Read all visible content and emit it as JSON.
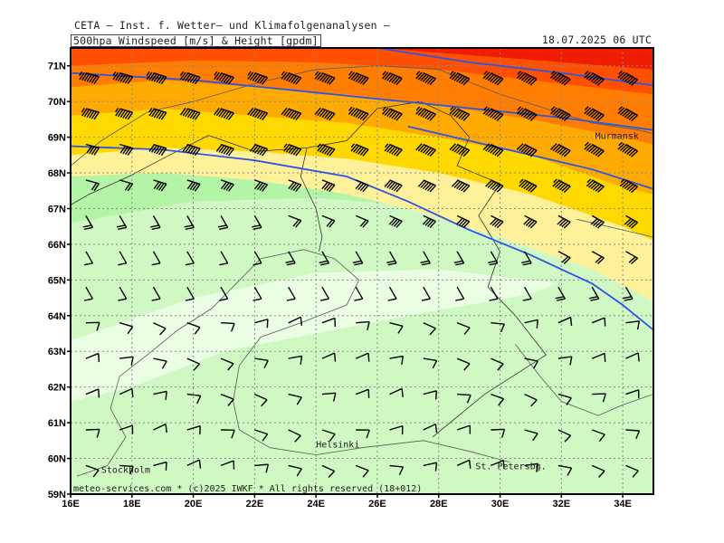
{
  "header": {
    "title": "CETA – Inst. f. Wetter– und Klimafolgenanalysen –",
    "variable": "500hpa_Windspeed_[m/s]_&_Height_[gpdm]",
    "valid_time": "18.07.2025 06 UTC"
  },
  "footer": {
    "credit": "meteo-services.com * (c)2025 IWKF * All rights reserved (18+012)"
  },
  "cities": [
    {
      "name": "Murmansk",
      "lon": 33.1,
      "lat": 68.95
    },
    {
      "name": "Helsinki",
      "lon": 24.0,
      "lat": 60.3
    },
    {
      "name": "Stockholm",
      "lon": 17.0,
      "lat": 59.6
    },
    {
      "name": "St. Petersbg.",
      "lon": 29.2,
      "lat": 59.7
    }
  ],
  "axes": {
    "lon_min": 16,
    "lon_max": 35,
    "lat_min": 59,
    "lat_max": 71.5,
    "lon_ticks": [
      {
        "v": 16,
        "label": "16E"
      },
      {
        "v": 18,
        "label": "18E"
      },
      {
        "v": 20,
        "label": "20E"
      },
      {
        "v": 22,
        "label": "22E"
      },
      {
        "v": 24,
        "label": "24E"
      },
      {
        "v": 26,
        "label": "26E"
      },
      {
        "v": 28,
        "label": "28E"
      },
      {
        "v": 30,
        "label": "30E"
      },
      {
        "v": 32,
        "label": "32E"
      },
      {
        "v": 34,
        "label": "34E"
      }
    ],
    "lat_ticks": [
      {
        "v": 59,
        "label": "59N"
      },
      {
        "v": 60,
        "label": "60N"
      },
      {
        "v": 61,
        "label": "61N"
      },
      {
        "v": 62,
        "label": "62N"
      },
      {
        "v": 63,
        "label": "63N"
      },
      {
        "v": 64,
        "label": "64N"
      },
      {
        "v": 65,
        "label": "65N"
      },
      {
        "v": 66,
        "label": "66N"
      },
      {
        "v": 67,
        "label": "67N"
      },
      {
        "v": 68,
        "label": "68N"
      },
      {
        "v": 69,
        "label": "69N"
      },
      {
        "v": 70,
        "label": "70N"
      },
      {
        "v": 71,
        "label": "71N"
      }
    ]
  },
  "colors": {
    "frame": "#000000",
    "grid": "#8a8a8a",
    "contour": "#2d55e6",
    "coast": "#5a5a5a",
    "barb": "#000000"
  },
  "speed_bands": [
    {
      "color": "#eafee3",
      "points": [
        [
          16,
          59
        ],
        [
          35,
          59
        ],
        [
          35,
          71.5
        ],
        [
          16,
          71.5
        ]
      ]
    },
    {
      "color": "#cff8c3",
      "points": [
        [
          16,
          59
        ],
        [
          35,
          59
        ],
        [
          35,
          66.0
        ],
        [
          31,
          64.6
        ],
        [
          27,
          64.0
        ],
        [
          24,
          63.5
        ],
        [
          21,
          63.0
        ],
        [
          18,
          62.0
        ],
        [
          16,
          61.6
        ]
      ]
    },
    {
      "color": "#cff8c3",
      "points": [
        [
          16,
          63.3
        ],
        [
          20,
          64.5
        ],
        [
          24,
          65.2
        ],
        [
          28,
          65.3
        ],
        [
          32,
          64.9
        ],
        [
          35,
          64.6
        ],
        [
          35,
          71.5
        ],
        [
          16,
          71.5
        ]
      ]
    },
    {
      "color": "#b4f4a6",
      "points": [
        [
          16,
          66.6
        ],
        [
          20,
          67.2
        ],
        [
          24,
          67.3
        ],
        [
          27,
          67.1
        ],
        [
          30,
          66.5
        ],
        [
          33,
          65.6
        ],
        [
          35,
          64.8
        ],
        [
          35,
          71.5
        ],
        [
          16,
          71.5
        ]
      ]
    },
    {
      "color": "#fff09a",
      "points": [
        [
          16,
          67.9
        ],
        [
          19,
          68.0
        ],
        [
          22,
          67.8
        ],
        [
          25,
          67.4
        ],
        [
          27,
          67.0
        ],
        [
          30,
          66.2
        ],
        [
          33,
          65.3
        ],
        [
          35,
          64.4
        ],
        [
          35,
          71.5
        ],
        [
          16,
          71.5
        ]
      ]
    },
    {
      "color": "#ffd800",
      "points": [
        [
          16,
          68.5
        ],
        [
          19,
          68.7
        ],
        [
          22,
          68.6
        ],
        [
          25,
          68.4
        ],
        [
          28,
          68.0
        ],
        [
          31,
          67.4
        ],
        [
          34,
          66.5
        ],
        [
          35,
          66.1
        ],
        [
          35,
          71.5
        ],
        [
          16,
          71.5
        ]
      ]
    },
    {
      "color": "#ffaa00",
      "points": [
        [
          16,
          69.6
        ],
        [
          19,
          69.8
        ],
        [
          22,
          69.6
        ],
        [
          25,
          69.4
        ],
        [
          28,
          69.0
        ],
        [
          31,
          68.5
        ],
        [
          34,
          67.6
        ],
        [
          35,
          67.4
        ],
        [
          35,
          71.5
        ],
        [
          16,
          71.5
        ]
      ]
    },
    {
      "color": "#ff7d00",
      "points": [
        [
          16,
          70.4
        ],
        [
          19,
          70.6
        ],
        [
          22,
          70.4
        ],
        [
          25,
          70.2
        ],
        [
          28,
          69.9
        ],
        [
          31,
          69.5
        ],
        [
          34,
          69.0
        ],
        [
          35,
          68.8
        ],
        [
          35,
          71.5
        ],
        [
          16,
          71.5
        ]
      ]
    },
    {
      "color": "#ff4f00",
      "points": [
        [
          16,
          71.0
        ],
        [
          20,
          71.15
        ],
        [
          24,
          71.1
        ],
        [
          28,
          70.9
        ],
        [
          31,
          70.6
        ],
        [
          35,
          70.2
        ],
        [
          35,
          71.5
        ],
        [
          16,
          71.5
        ]
      ]
    },
    {
      "color": "#f01d00",
      "points": [
        [
          26,
          71.5
        ],
        [
          29,
          71.3
        ],
        [
          32,
          71.1
        ],
        [
          35,
          70.9
        ],
        [
          35,
          71.5
        ]
      ]
    }
  ],
  "height_contours": [
    {
      "points": [
        [
          16,
          70.8
        ],
        [
          20,
          70.6
        ],
        [
          24,
          70.25
        ],
        [
          28,
          69.9
        ],
        [
          32,
          69.55
        ],
        [
          35,
          69.2
        ]
      ]
    },
    {
      "points": [
        [
          26,
          71.5
        ],
        [
          29,
          71.1
        ],
        [
          32,
          70.8
        ],
        [
          35,
          70.45
        ]
      ]
    },
    {
      "points": [
        [
          16,
          68.75
        ],
        [
          19,
          68.65
        ],
        [
          22,
          68.35
        ],
        [
          25,
          67.9
        ],
        [
          27,
          67.2
        ],
        [
          29,
          66.4
        ],
        [
          31,
          65.7
        ],
        [
          33,
          64.9
        ],
        [
          34,
          64.3
        ],
        [
          35,
          63.6
        ]
      ]
    },
    {
      "points": [
        [
          27,
          69.3
        ],
        [
          29,
          68.9
        ],
        [
          31,
          68.5
        ],
        [
          33,
          68.1
        ],
        [
          35,
          67.55
        ]
      ]
    }
  ],
  "coastlines": [
    {
      "points": [
        [
          16.2,
          59.5
        ],
        [
          17.2,
          59.8
        ],
        [
          17.8,
          60.6
        ],
        [
          17.3,
          61.4
        ],
        [
          17.6,
          62.3
        ],
        [
          18.5,
          62.9
        ],
        [
          19.5,
          63.6
        ],
        [
          20.6,
          64.2
        ],
        [
          21.4,
          64.9
        ],
        [
          22.2,
          65.6
        ],
        [
          23.6,
          65.85
        ],
        [
          24.6,
          65.6
        ],
        [
          25.4,
          65.0
        ],
        [
          25.0,
          64.3
        ],
        [
          23.5,
          63.8
        ],
        [
          22.2,
          63.4
        ],
        [
          21.5,
          62.6
        ],
        [
          21.3,
          61.6
        ],
        [
          21.5,
          60.8
        ],
        [
          22.5,
          60.3
        ],
        [
          24.0,
          60.1
        ],
        [
          25.5,
          60.3
        ],
        [
          27.5,
          60.5
        ],
        [
          29.0,
          60.2
        ],
        [
          30.3,
          59.9
        ]
      ]
    },
    {
      "points": [
        [
          16.0,
          68.2
        ],
        [
          17.0,
          68.9
        ],
        [
          18.5,
          69.7
        ],
        [
          20.0,
          70.0
        ],
        [
          22.0,
          70.5
        ],
        [
          24.0,
          70.9
        ],
        [
          26.0,
          71.0
        ],
        [
          28.0,
          70.9
        ],
        [
          30.0,
          70.2
        ],
        [
          31.5,
          69.8
        ],
        [
          33.0,
          69.4
        ],
        [
          34.5,
          69.2
        ],
        [
          35.0,
          69.1
        ]
      ]
    },
    {
      "points": [
        [
          32.5,
          66.7
        ],
        [
          34.0,
          66.4
        ],
        [
          35.0,
          66.2
        ]
      ]
    },
    {
      "points": [
        [
          30.5,
          63.2
        ],
        [
          31.3,
          62.3
        ],
        [
          32.0,
          61.6
        ],
        [
          33.2,
          61.2
        ],
        [
          34.0,
          61.5
        ],
        [
          35.0,
          61.8
        ]
      ]
    }
  ],
  "borders": [
    {
      "points": [
        [
          20.5,
          69.05
        ],
        [
          22.0,
          68.6
        ],
        [
          23.7,
          68.7
        ],
        [
          25.0,
          68.9
        ],
        [
          26.0,
          69.8
        ],
        [
          27.4,
          70.0
        ],
        [
          28.4,
          69.6
        ],
        [
          29.0,
          69.0
        ],
        [
          28.6,
          68.2
        ],
        [
          30.0,
          67.7
        ],
        [
          29.3,
          66.8
        ],
        [
          30.0,
          65.8
        ],
        [
          29.6,
          64.8
        ],
        [
          30.5,
          64.0
        ],
        [
          31.5,
          62.9
        ],
        [
          29.5,
          61.8
        ],
        [
          27.8,
          60.6
        ]
      ]
    },
    {
      "points": [
        [
          20.5,
          69.05
        ],
        [
          19.0,
          68.4
        ],
        [
          17.9,
          67.9
        ],
        [
          16.6,
          67.4
        ],
        [
          16.0,
          67.1
        ]
      ]
    },
    {
      "points": [
        [
          23.7,
          68.7
        ],
        [
          23.5,
          67.9
        ],
        [
          24.0,
          67.0
        ],
        [
          24.2,
          66.2
        ],
        [
          24.1,
          65.8
        ]
      ]
    }
  ]
}
